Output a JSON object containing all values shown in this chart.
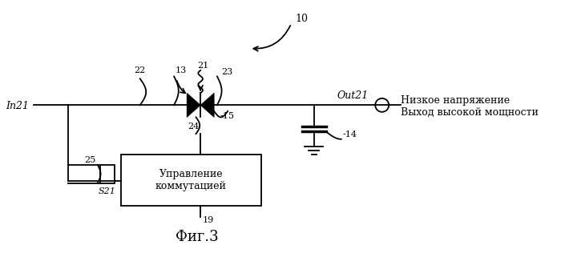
{
  "title": "Фиг.3",
  "background_color": "#ffffff",
  "label_10": "10",
  "label_22": "22",
  "label_13": "13",
  "label_21": "21",
  "label_23": "23",
  "label_15": "-15",
  "label_24": "24",
  "label_25": "25",
  "label_14": "-14",
  "label_19": "19",
  "label_In21": "In21",
  "label_Out21": "Out21",
  "label_S21": "S21",
  "label_box": "Управление\nкоммутацией",
  "label_right1": "Низкое напряжение",
  "label_right2": "Выход высокой мощности",
  "line_color": "#000000"
}
